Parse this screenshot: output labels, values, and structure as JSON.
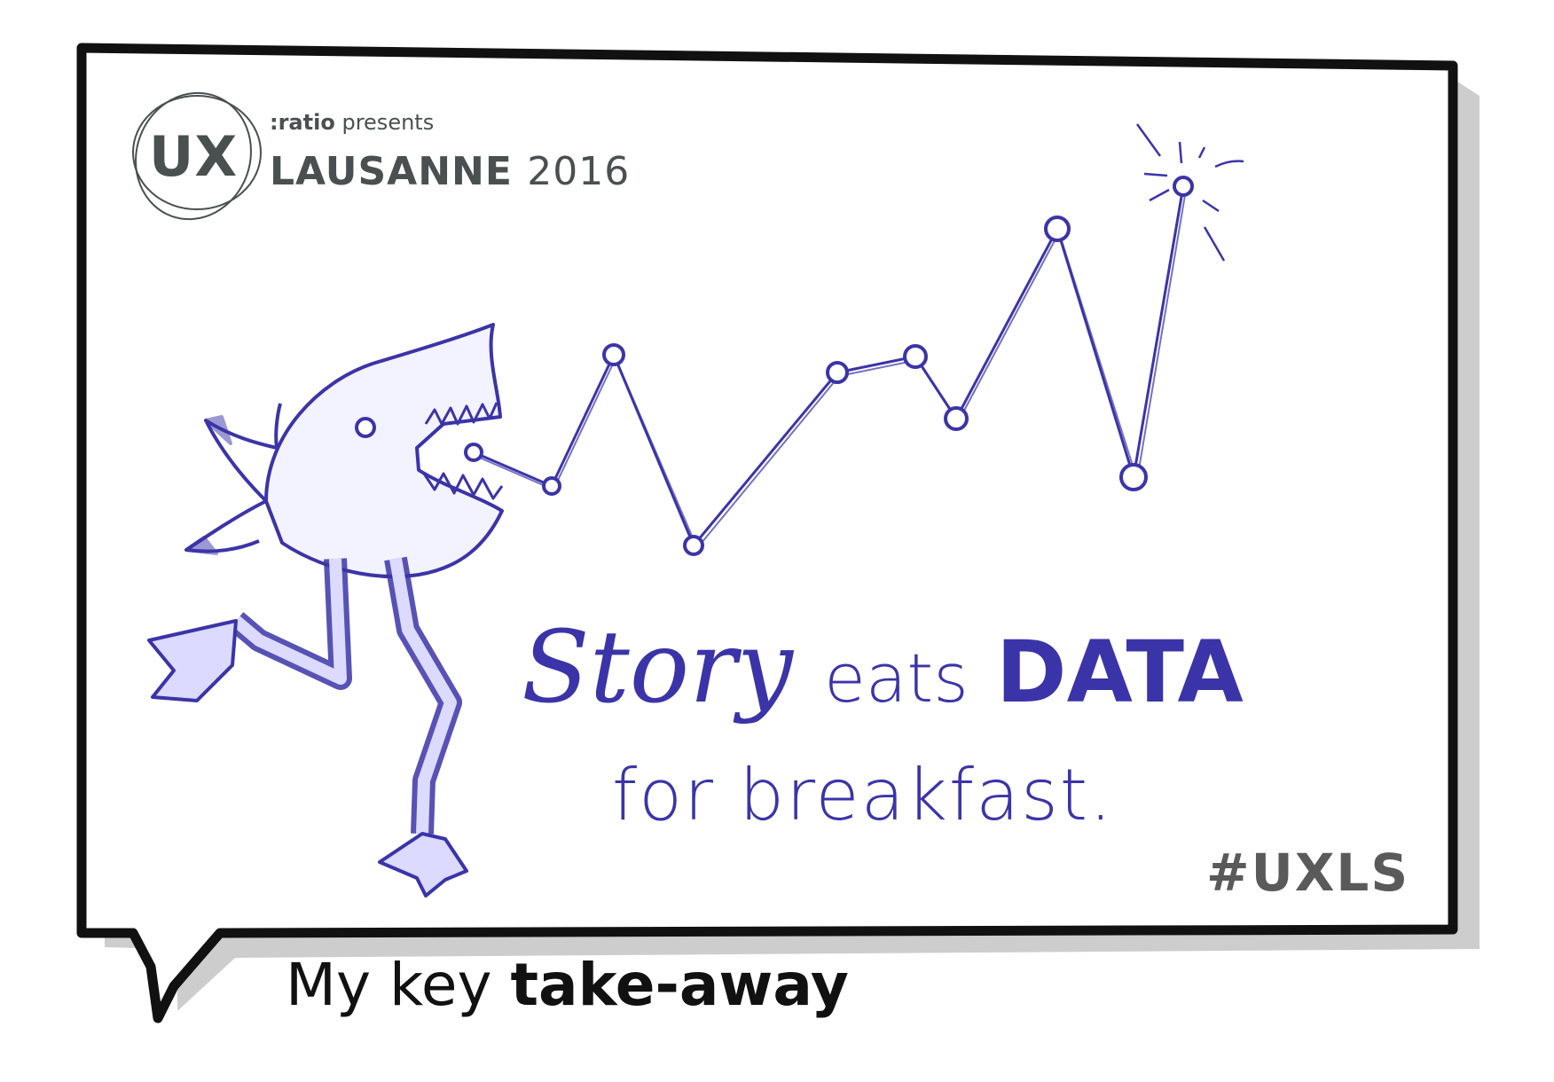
{
  "logo": {
    "ux": "UX",
    "presenter": ":ratio",
    "presents": "presents",
    "event": "LAUSANNE",
    "year": "2016"
  },
  "message": {
    "story": "Story",
    "eats": "eats",
    "data": "DATA",
    "line2": "for breakfast."
  },
  "hashtag": "#UXLS",
  "caption": {
    "prefix": "My key",
    "bold": "take-away"
  },
  "colors": {
    "ink_blue": "#3b34a8",
    "frame_black": "#111111",
    "logo_gray": "#4a4f50",
    "shadow_gray": "#b8b8b8"
  },
  "icons": [
    "shark-icon",
    "sparkle-icon"
  ]
}
